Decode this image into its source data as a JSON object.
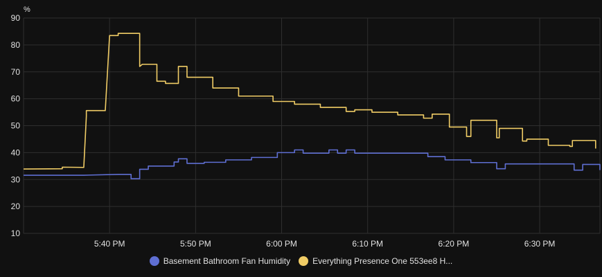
{
  "chart_data": {
    "type": "line",
    "ylabel": "%",
    "ylim": [
      10,
      90
    ],
    "y_ticks": [
      "90",
      "80",
      "70",
      "60",
      "50",
      "40",
      "30",
      "20",
      "10"
    ],
    "xlim": [
      "17:30",
      "17:37"
    ],
    "x_ticks": [
      {
        "time": "17:40",
        "label": "5:40 PM"
      },
      {
        "time": "17:50",
        "label": "5:50 PM"
      },
      {
        "time": "18:00",
        "label": "6:00 PM"
      },
      {
        "time": "18:10",
        "label": "6:10 PM"
      },
      {
        "time": "18:20",
        "label": "6:20 PM"
      },
      {
        "time": "18:30",
        "label": "6:30 PM"
      }
    ],
    "x_start": "17:30",
    "x_end": "18:37",
    "grid": true,
    "legend_position": "bottom",
    "series": [
      {
        "name": "Basement Bathroom Fan Humidity",
        "color": "#5f6fd3",
        "points": [
          [
            "17:30",
            31.6
          ],
          [
            "17:37",
            31.6
          ],
          [
            "17:41",
            31.9
          ],
          [
            "17:42.5",
            31.9
          ],
          [
            "17:42.5",
            30.3
          ],
          [
            "17:43.5",
            30.3
          ],
          [
            "17:43.5",
            33.8
          ],
          [
            "17:44.5",
            33.8
          ],
          [
            "17:44.5",
            35.0
          ],
          [
            "17:47.5",
            35.0
          ],
          [
            "17:47.5",
            36.5
          ],
          [
            "17:48",
            36.5
          ],
          [
            "17:48",
            37.7
          ],
          [
            "17:49",
            37.7
          ],
          [
            "17:49",
            36.0
          ],
          [
            "17:51",
            36.0
          ],
          [
            "17:51",
            36.4
          ],
          [
            "17:53.5",
            36.4
          ],
          [
            "17:53.5",
            37.3
          ],
          [
            "17:56.5",
            37.3
          ],
          [
            "17:56.5",
            38.2
          ],
          [
            "17:59.5",
            38.2
          ],
          [
            "17:59.5",
            40.0
          ],
          [
            "18:01.5",
            40.0
          ],
          [
            "18:01.5",
            41.0
          ],
          [
            "18:02.5",
            41.0
          ],
          [
            "18:02.5",
            39.8
          ],
          [
            "18:05.5",
            39.8
          ],
          [
            "18:05.5",
            41.0
          ],
          [
            "18:06.5",
            41.0
          ],
          [
            "18:06.5",
            39.8
          ],
          [
            "18:07.5",
            39.8
          ],
          [
            "18:07.5",
            41.0
          ],
          [
            "18:08.5",
            41.0
          ],
          [
            "18:08.5",
            39.8
          ],
          [
            "18:17",
            39.8
          ],
          [
            "18:17",
            38.5
          ],
          [
            "18:19",
            38.5
          ],
          [
            "18:19",
            37.3
          ],
          [
            "18:22",
            37.3
          ],
          [
            "18:22",
            36.3
          ],
          [
            "18:25",
            36.3
          ],
          [
            "18:25",
            34.0
          ],
          [
            "18:26",
            34.0
          ],
          [
            "18:26",
            35.8
          ],
          [
            "18:34",
            35.8
          ],
          [
            "18:34",
            33.5
          ],
          [
            "18:35",
            33.5
          ],
          [
            "18:35",
            35.6
          ],
          [
            "18:37",
            35.6
          ],
          [
            "18:37",
            33.5
          ]
        ]
      },
      {
        "name": "Everything Presence One 553ee8 H...",
        "color": "#f1cd66",
        "points": [
          [
            "17:30",
            33.9
          ],
          [
            "17:34.5",
            34.0
          ],
          [
            "17:34.5",
            34.6
          ],
          [
            "17:37",
            34.5
          ],
          [
            "17:37.3",
            53.5
          ],
          [
            "17:37.3",
            55.6
          ],
          [
            "17:39.5",
            55.6
          ],
          [
            "17:40",
            83.5
          ],
          [
            "17:41",
            83.5
          ],
          [
            "17:41",
            84.3
          ],
          [
            "17:43.5",
            84.3
          ],
          [
            "17:43.5",
            72.0
          ],
          [
            "17:43.8",
            72.8
          ],
          [
            "17:45.5",
            72.8
          ],
          [
            "17:45.5",
            66.5
          ],
          [
            "17:46.5",
            66.5
          ],
          [
            "17:46.5",
            65.7
          ],
          [
            "17:48",
            65.7
          ],
          [
            "17:48",
            72.0
          ],
          [
            "17:49",
            72.0
          ],
          [
            "17:49",
            68.0
          ],
          [
            "17:52",
            68.0
          ],
          [
            "17:52",
            64.0
          ],
          [
            "17:55",
            64.0
          ],
          [
            "17:55",
            61.0
          ],
          [
            "17:59",
            61.0
          ],
          [
            "17:59",
            59.0
          ],
          [
            "18:01.5",
            59.0
          ],
          [
            "18:01.5",
            58.0
          ],
          [
            "18:04.5",
            58.0
          ],
          [
            "18:04.5",
            56.8
          ],
          [
            "18:07.5",
            56.8
          ],
          [
            "18:07.5",
            55.3
          ],
          [
            "18:08.5",
            55.3
          ],
          [
            "18:08.5",
            55.9
          ],
          [
            "18:10.5",
            55.9
          ],
          [
            "18:10.5",
            55.0
          ],
          [
            "18:13.5",
            55.0
          ],
          [
            "18:13.5",
            54.0
          ],
          [
            "18:16.5",
            54.0
          ],
          [
            "18:16.5",
            52.8
          ],
          [
            "18:17.5",
            52.8
          ],
          [
            "18:17.5",
            54.3
          ],
          [
            "18:19.5",
            54.3
          ],
          [
            "18:19.5",
            49.5
          ],
          [
            "18:21.5",
            49.5
          ],
          [
            "18:21.5",
            46.0
          ],
          [
            "18:22",
            46.0
          ],
          [
            "18:22",
            52.0
          ],
          [
            "18:25",
            52.0
          ],
          [
            "18:25",
            45.5
          ],
          [
            "18:25.3",
            45.5
          ],
          [
            "18:25.3",
            49.0
          ],
          [
            "18:28",
            49.0
          ],
          [
            "18:28",
            44.3
          ],
          [
            "18:28.5",
            44.3
          ],
          [
            "18:28.5",
            45.0
          ],
          [
            "18:31",
            45.0
          ],
          [
            "18:31",
            42.7
          ],
          [
            "18:33.5",
            42.7
          ],
          [
            "18:33.5",
            42.3
          ],
          [
            "18:33.8",
            42.3
          ],
          [
            "18:33.8",
            44.5
          ],
          [
            "18:36.5",
            44.5
          ],
          [
            "18:36.5",
            41.5
          ]
        ]
      }
    ]
  }
}
